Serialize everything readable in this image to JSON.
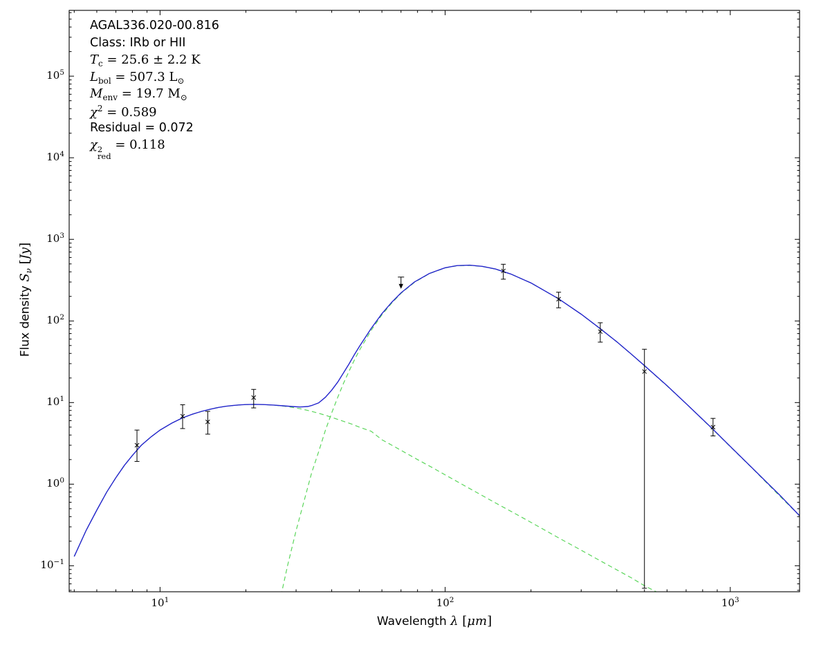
{
  "figure": {
    "annotations": [
      {
        "segments": [
          {
            "t": "AGAL336.020-00.816",
            "f": "sans"
          }
        ]
      },
      {
        "segments": [
          {
            "t": "Class: IRb or HII",
            "f": "sans"
          }
        ]
      },
      {
        "segments": [
          {
            "t": "T",
            "f": "it"
          },
          {
            "t": "c",
            "f": "sub"
          },
          {
            "t": " = 25.6 ± 2.2 K",
            "f": "rm"
          }
        ]
      },
      {
        "segments": [
          {
            "t": "L",
            "f": "it"
          },
          {
            "t": "bol",
            "f": "sub"
          },
          {
            "t": " = 507.3 L",
            "f": "rm"
          },
          {
            "t": "⊙",
            "f": "sub"
          }
        ]
      },
      {
        "segments": [
          {
            "t": "M",
            "f": "it"
          },
          {
            "t": "env",
            "f": "sub"
          },
          {
            "t": " = 19.7 M",
            "f": "rm"
          },
          {
            "t": "⊙",
            "f": "sub"
          }
        ]
      },
      {
        "segments": [
          {
            "t": "χ",
            "f": "it"
          },
          {
            "t": "2",
            "f": "sup"
          },
          {
            "t": " = 0.589",
            "f": "rm"
          }
        ]
      },
      {
        "segments": [
          {
            "t": "Residual = 0.072",
            "f": "sans"
          }
        ]
      },
      {
        "segments": [
          {
            "t": "χ",
            "f": "it"
          },
          {
            "t": "2",
            "b": "red",
            "f": "stack"
          },
          {
            "t": " = 0.118",
            "f": "rm"
          }
        ]
      }
    ]
  },
  "chart_data": {
    "type": "line",
    "title": "",
    "xscale": "log",
    "yscale": "log",
    "xlim": [
      4.8,
      1750
    ],
    "ylim": [
      0.048,
      640000
    ],
    "grid": false,
    "legend": "none",
    "xlabel_segments": [
      {
        "t": "Wavelength ",
        "f": "sans"
      },
      {
        "t": "λ",
        "f": "it"
      },
      {
        "t": " [",
        "f": "rm"
      },
      {
        "t": "μm",
        "f": "it"
      },
      {
        "t": "]",
        "f": "rm"
      }
    ],
    "ylabel_segments": [
      {
        "t": "Flux density ",
        "f": "sans"
      },
      {
        "t": "S",
        "f": "it"
      },
      {
        "t": "ν",
        "f": "subit"
      },
      {
        "t": " [",
        "f": "rm"
      },
      {
        "t": "Jy",
        "f": "it"
      },
      {
        "t": "]",
        "f": "rm"
      }
    ],
    "x_major_tick_exponents": [
      1,
      2,
      3
    ],
    "y_major_tick_exponents": [
      -1,
      0,
      1,
      2,
      3,
      4,
      5
    ],
    "colors": {
      "model": "#2323cd",
      "components": "#5bd65b",
      "data": "#000000"
    },
    "series": [
      {
        "name": "warm-component",
        "color": "#5bd65b",
        "style": "dashed",
        "width": 1.2,
        "points": [
          [
            5,
            0.13
          ],
          [
            5.5,
            0.27
          ],
          [
            6,
            0.48
          ],
          [
            6.5,
            0.8
          ],
          [
            7,
            1.2
          ],
          [
            7.5,
            1.7
          ],
          [
            8,
            2.25
          ],
          [
            8.6,
            3.0
          ],
          [
            9.3,
            3.8
          ],
          [
            10,
            4.6
          ],
          [
            11,
            5.6
          ],
          [
            12,
            6.5
          ],
          [
            13,
            7.2
          ],
          [
            14,
            7.8
          ],
          [
            15,
            8.3
          ],
          [
            16,
            8.7
          ],
          [
            17,
            9.0
          ],
          [
            18,
            9.2
          ],
          [
            19,
            9.35
          ],
          [
            20,
            9.45
          ],
          [
            21.5,
            9.5
          ],
          [
            23,
            9.45
          ],
          [
            25,
            9.3
          ],
          [
            27,
            9.05
          ],
          [
            29,
            8.75
          ],
          [
            31,
            8.4
          ],
          [
            33,
            8.0
          ],
          [
            35,
            7.6
          ],
          [
            38,
            7.0
          ],
          [
            41,
            6.4
          ],
          [
            44,
            5.9
          ],
          [
            47,
            5.45
          ],
          [
            50,
            5.0
          ],
          [
            55,
            4.45
          ],
          [
            60,
            3.5
          ],
          [
            65,
            3.0
          ],
          [
            70,
            2.6
          ],
          [
            80,
            2.0
          ],
          [
            90,
            1.6
          ],
          [
            100,
            1.3
          ],
          [
            115,
            0.99
          ],
          [
            130,
            0.78
          ],
          [
            150,
            0.59
          ],
          [
            175,
            0.44
          ],
          [
            200,
            0.34
          ],
          [
            250,
            0.22
          ],
          [
            300,
            0.155
          ],
          [
            350,
            0.115
          ],
          [
            400,
            0.089
          ],
          [
            450,
            0.071
          ],
          [
            500,
            0.057
          ],
          [
            550,
            0.048
          ],
          [
            600,
            0.041
          ],
          [
            650,
            0.035
          ]
        ]
      },
      {
        "name": "cold-component",
        "color": "#5bd65b",
        "style": "dashed",
        "width": 1.2,
        "points": [
          [
            25,
            0.015
          ],
          [
            26,
            0.031
          ],
          [
            27,
            0.056
          ],
          [
            28,
            0.1
          ],
          [
            30,
            0.27
          ],
          [
            32,
            0.62
          ],
          [
            34,
            1.37
          ],
          [
            36,
            2.5
          ],
          [
            38,
            4.56
          ],
          [
            40,
            7.5
          ],
          [
            42,
            11.6
          ],
          [
            44,
            17.2
          ],
          [
            46,
            24.2
          ],
          [
            48,
            33
          ],
          [
            50,
            43.5
          ],
          [
            55,
            76.7
          ],
          [
            60,
            119
          ],
          [
            65,
            166
          ],
          [
            70,
            218
          ],
          [
            78,
            297
          ],
          [
            88,
            380
          ],
          [
            100,
            447
          ],
          [
            110,
            475
          ],
          [
            122,
            480
          ],
          [
            135,
            466
          ],
          [
            150,
            432
          ],
          [
            170,
            376
          ],
          [
            200,
            292
          ],
          [
            250,
            187
          ],
          [
            300,
            121
          ],
          [
            350,
            80
          ],
          [
            400,
            55.4
          ],
          [
            450,
            39
          ],
          [
            500,
            28.3
          ],
          [
            600,
            16
          ],
          [
            700,
            9.7
          ],
          [
            870,
            4.66
          ],
          [
            1000,
            2.88
          ],
          [
            1200,
            1.54
          ],
          [
            1500,
            0.7
          ],
          [
            1750,
            0.41
          ]
        ]
      },
      {
        "name": "total-model",
        "color": "#2323cd",
        "style": "solid",
        "width": 1.4,
        "points": [
          [
            5,
            0.13
          ],
          [
            5.5,
            0.27
          ],
          [
            6,
            0.48
          ],
          [
            6.5,
            0.8
          ],
          [
            7,
            1.2
          ],
          [
            7.5,
            1.7
          ],
          [
            8,
            2.25
          ],
          [
            8.6,
            3.0
          ],
          [
            9.3,
            3.8
          ],
          [
            10,
            4.6
          ],
          [
            11,
            5.6
          ],
          [
            12,
            6.5
          ],
          [
            13,
            7.2
          ],
          [
            14,
            7.8
          ],
          [
            15,
            8.3
          ],
          [
            16,
            8.7
          ],
          [
            17,
            9.0
          ],
          [
            18,
            9.2
          ],
          [
            19,
            9.35
          ],
          [
            20,
            9.45
          ],
          [
            21.5,
            9.5
          ],
          [
            23,
            9.45
          ],
          [
            25,
            9.33
          ],
          [
            27,
            9.12
          ],
          [
            29,
            8.95
          ],
          [
            31,
            8.82
          ],
          [
            33,
            8.95
          ],
          [
            34,
            9.2
          ],
          [
            36,
            9.9
          ],
          [
            38,
            11.6
          ],
          [
            40,
            14.2
          ],
          [
            42,
            17.8
          ],
          [
            44,
            23.1
          ],
          [
            46,
            29.7
          ],
          [
            48,
            38.5
          ],
          [
            50,
            48.5
          ],
          [
            55,
            81
          ],
          [
            60,
            123
          ],
          [
            65,
            170
          ],
          [
            70,
            221
          ],
          [
            78,
            300
          ],
          [
            88,
            382
          ],
          [
            100,
            449
          ],
          [
            110,
            477
          ],
          [
            122,
            482
          ],
          [
            135,
            467
          ],
          [
            150,
            433
          ],
          [
            170,
            376
          ],
          [
            200,
            292
          ],
          [
            250,
            187
          ],
          [
            300,
            121
          ],
          [
            350,
            80.5
          ],
          [
            400,
            55.5
          ],
          [
            450,
            39.1
          ],
          [
            500,
            28.4
          ],
          [
            600,
            16.1
          ],
          [
            700,
            9.7
          ],
          [
            870,
            4.7
          ],
          [
            1000,
            2.9
          ],
          [
            1200,
            1.55
          ],
          [
            1500,
            0.72
          ],
          [
            1750,
            0.41
          ]
        ]
      }
    ],
    "points": [
      {
        "x": 8.3,
        "y": 3.0,
        "lo": 1.9,
        "hi": 4.6
      },
      {
        "x": 12,
        "y": 6.8,
        "lo": 4.8,
        "hi": 9.4
      },
      {
        "x": 14.7,
        "y": 5.8,
        "lo": 4.1,
        "hi": 7.8
      },
      {
        "x": 21.3,
        "y": 11.5,
        "lo": 8.6,
        "hi": 14.5
      },
      {
        "x": 70,
        "y": 345,
        "upper_limit": true
      },
      {
        "x": 160,
        "y": 410,
        "lo": 325,
        "hi": 495
      },
      {
        "x": 250,
        "y": 185,
        "lo": 145,
        "hi": 225
      },
      {
        "x": 350,
        "y": 74,
        "lo": 55,
        "hi": 95
      },
      {
        "x": 500,
        "y": 24,
        "lo": 0.053,
        "hi": 45
      },
      {
        "x": 870,
        "y": 5.0,
        "lo": 3.9,
        "hi": 6.4
      }
    ]
  }
}
